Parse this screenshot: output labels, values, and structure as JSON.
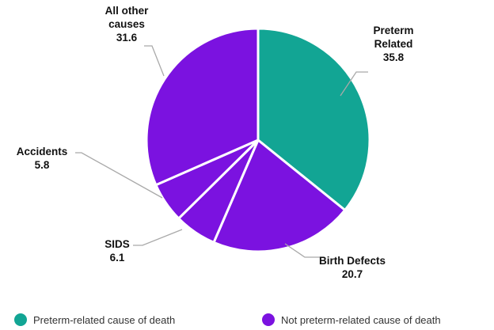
{
  "chart_data": {
    "type": "pie",
    "slices": [
      {
        "label_lines": [
          "Preterm",
          "Related"
        ],
        "value_text": "35.8",
        "value": 35.8,
        "group": "preterm"
      },
      {
        "label_lines": [
          "Birth Defects"
        ],
        "value_text": "20.7",
        "value": 20.7,
        "group": "not_preterm"
      },
      {
        "label_lines": [
          "SIDS"
        ],
        "value_text": "6.1",
        "value": 6.1,
        "group": "not_preterm"
      },
      {
        "label_lines": [
          "Accidents"
        ],
        "value_text": "5.8",
        "value": 5.8,
        "group": "not_preterm"
      },
      {
        "label_lines": [
          "All other",
          "causes"
        ],
        "value_text": "31.6",
        "value": 31.6,
        "group": "not_preterm"
      }
    ],
    "colors": {
      "preterm": "#12a594",
      "not_preterm": "#7b12e0"
    },
    "start_angle_deg": 0,
    "direction": "clockwise",
    "legend": [
      {
        "label": "Preterm-related cause of death",
        "group": "preterm"
      },
      {
        "label": "Not preterm-related cause of death",
        "group": "not_preterm"
      }
    ],
    "legend_position": "bottom"
  }
}
